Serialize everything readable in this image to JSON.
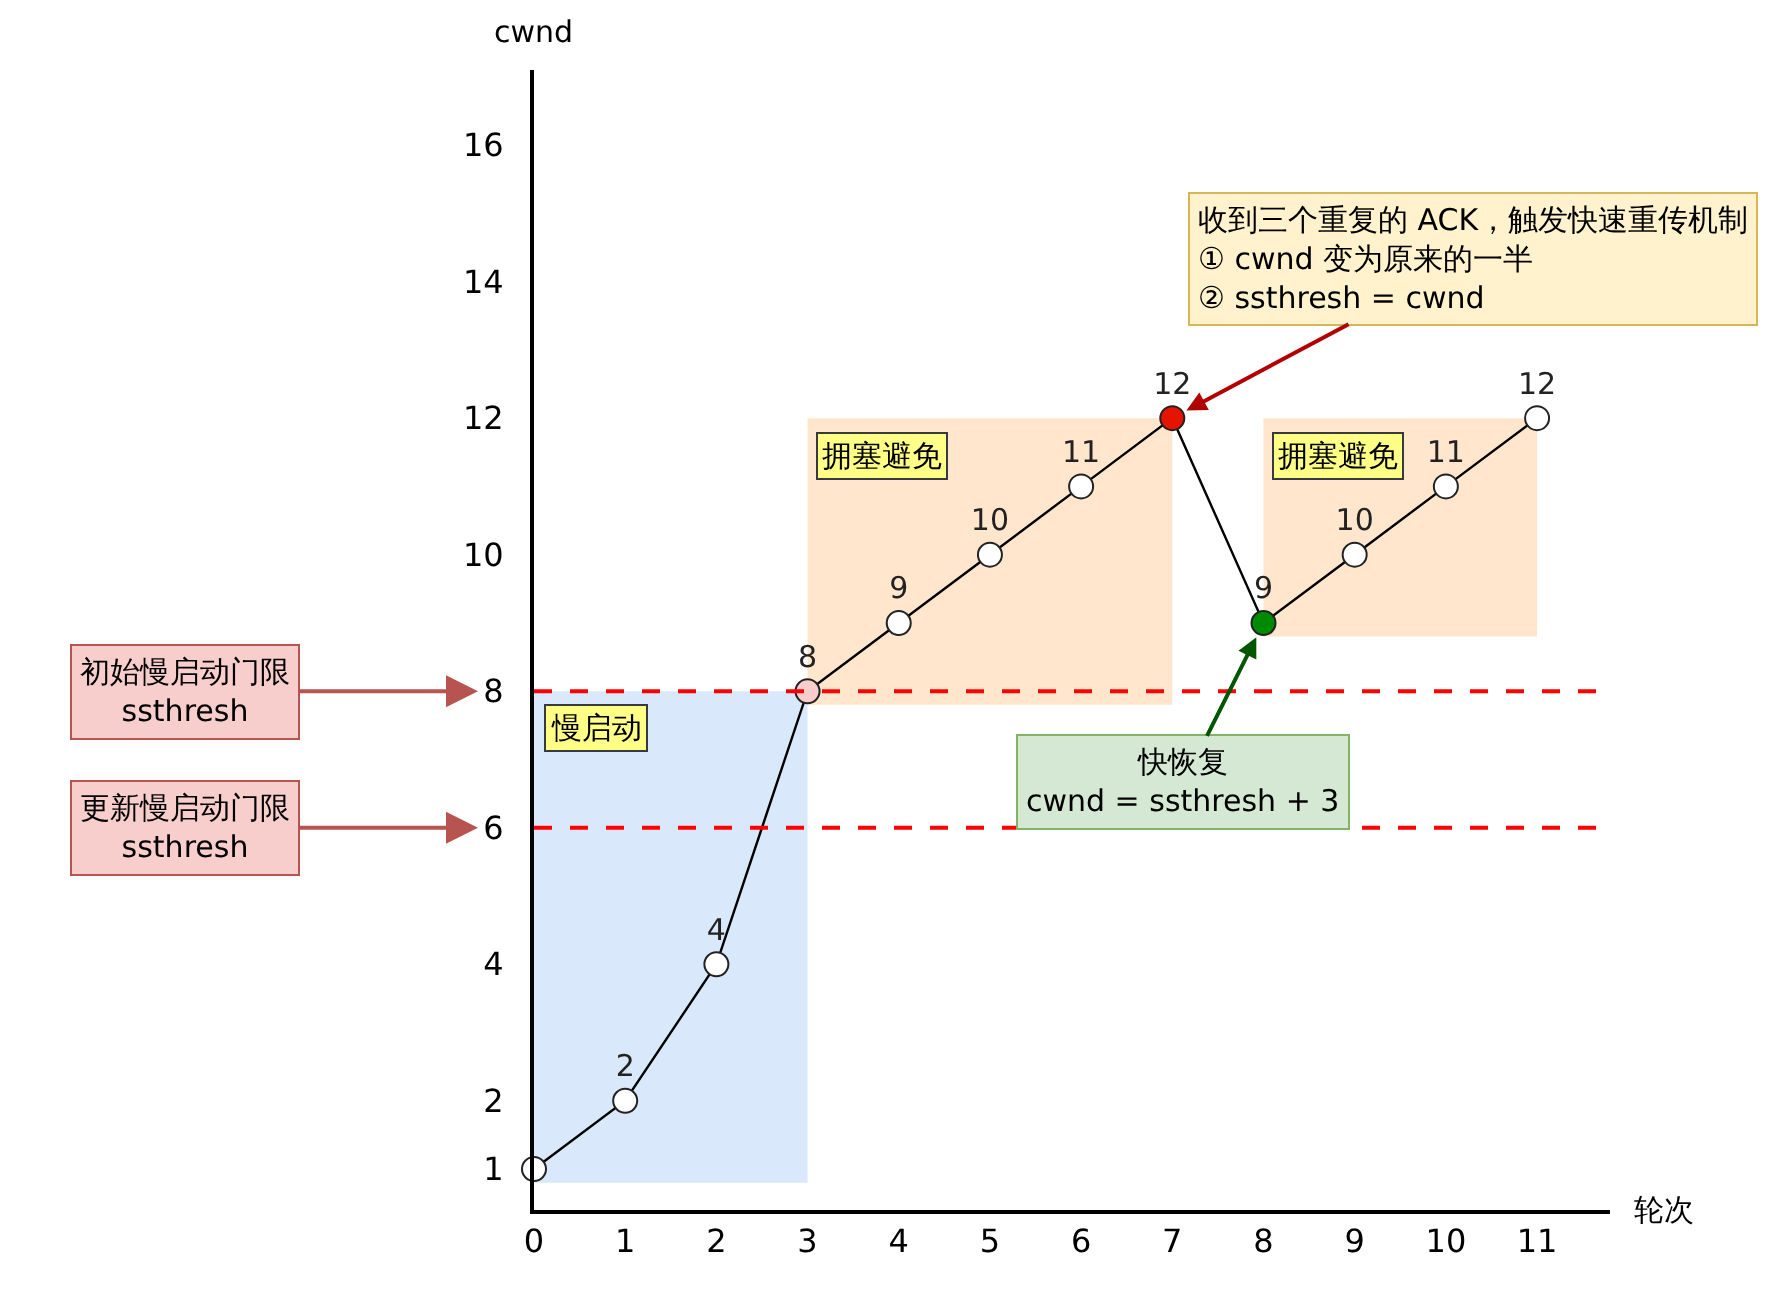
{
  "chart_data": {
    "type": "line",
    "xlabel": "轮次",
    "ylabel": "cwnd",
    "x": [
      0,
      1,
      2,
      3,
      4,
      5,
      6,
      7,
      8,
      9,
      10,
      11
    ],
    "series": [
      {
        "color": "#000000",
        "colors": [
          "#ffffff",
          "#ffffff",
          "#ffffff",
          "#f8cecc",
          "#ffffff",
          "#ffffff",
          "#ffffff",
          "#e51400",
          "#008a00",
          "#ffffff",
          "#ffffff",
          "#ffffff"
        ],
        "values": [
          1,
          2,
          4,
          8,
          9,
          10,
          11,
          12,
          9,
          10,
          11,
          12
        ],
        "value_labels": [
          null,
          "2",
          "4",
          "8",
          "9",
          "10",
          "11",
          "12",
          "9",
          "10",
          "11",
          "12"
        ]
      }
    ],
    "xlim": [
      0,
      11.8
    ],
    "ylim": [
      0.4,
      17.1
    ],
    "xticks": [
      0,
      1,
      2,
      3,
      4,
      5,
      6,
      7,
      8,
      9,
      10,
      11
    ],
    "yticks": [
      1,
      2,
      4,
      6,
      8,
      10,
      12,
      14,
      16
    ],
    "ref_lines": [
      {
        "axis": "y",
        "value": 8,
        "label": "初始慢启动门限\nssthresh",
        "color": "#ff0000",
        "line_style": "dashed"
      },
      {
        "axis": "y",
        "value": 6,
        "label": "更新慢启动门限\nssthresh",
        "color": "#ff0000",
        "line_style": "dashed"
      }
    ],
    "bands": [
      {
        "axis": "x",
        "from": 0,
        "to": 3,
        "label": "慢启动",
        "color": "#dae8fc"
      },
      {
        "axis": "x",
        "from": 3,
        "to": 7,
        "label": "拥塞避免",
        "color": "#ffe6cc"
      },
      {
        "axis": "x",
        "from": 8,
        "to": 11,
        "label": "拥塞避免",
        "color": "#ffe6cc"
      }
    ],
    "annotations": [
      {
        "text": "收到三个重复的 ACK，触发快速重传机制\n① cwnd 变为原来的一半\n② ssthresh = cwnd",
        "x": 7,
        "y": 12
      },
      {
        "text": "快恢复\ncwnd = ssthresh + 3",
        "x": 8,
        "y": 9
      }
    ],
    "grid": false,
    "marker": "circle",
    "line_style": "solid"
  }
}
